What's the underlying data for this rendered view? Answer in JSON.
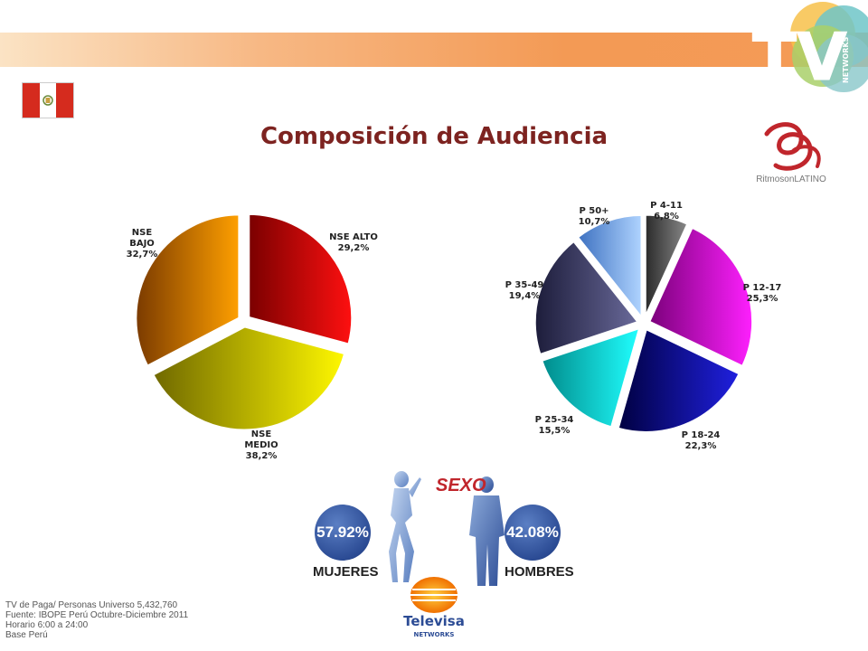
{
  "header": {
    "title": "Composición de Audiencia",
    "tv_logo_text": "TV",
    "tv_logo_sub": "NETWORKS",
    "ritmoson_text": "RitmosonLATINO"
  },
  "chart_data": [
    {
      "type": "pie",
      "slices": [
        {
          "label": "NSE ALTO",
          "value": 29.2,
          "value_label": "29,2%",
          "color": "#e81010"
        },
        {
          "label": "NSE MEDIO",
          "value": 38.2,
          "value_label": "38,2%",
          "color": "#e3e000"
        },
        {
          "label": "NSE BAJO",
          "value": 32.7,
          "value_label": "32,7%",
          "color": "#f59400"
        }
      ]
    },
    {
      "type": "pie",
      "slices": [
        {
          "label": "P 4-11",
          "value": 6.8,
          "value_label": "6,8%",
          "color": "#6e6e6e"
        },
        {
          "label": "P 12-17",
          "value": 25.3,
          "value_label": "25,3%",
          "color": "#d812d8"
        },
        {
          "label": "P 18-24",
          "value": 22.3,
          "value_label": "22,3%",
          "color": "#1414b8"
        },
        {
          "label": "P 25-34",
          "value": 15.5,
          "value_label": "15,5%",
          "color": "#12e6e6"
        },
        {
          "label": "P 35-49",
          "value": 19.4,
          "value_label": "19,4%",
          "color": "#50507a"
        },
        {
          "label": "P 50+",
          "value": 10.7,
          "value_label": "10,7%",
          "color": "#8ab8ee"
        }
      ]
    }
  ],
  "sexo": {
    "title": "SEXO",
    "women_pct": "57.92%",
    "men_pct": "42.08%",
    "women_label": "MUJERES",
    "men_label": "HOMBRES"
  },
  "footnote": {
    "line1": "TV de Paga/ Personas Universo 5,432,760",
    "line2": "Fuente: IBOPE Perú Octubre-Diciembre 2011",
    "line3": "Horario 6:00 a 24:00",
    "line4": "Base Perú"
  },
  "televisa": {
    "name": "Televisa",
    "sub": "NETWORKS"
  }
}
